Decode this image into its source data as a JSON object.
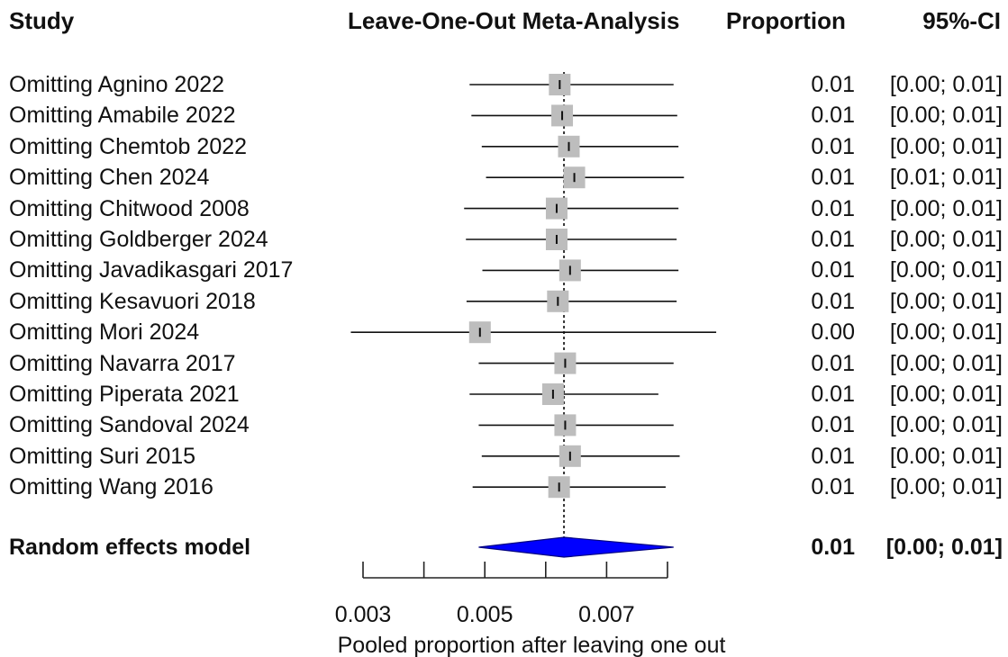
{
  "headers": {
    "study": "Study",
    "title": "Leave-One-Out Meta-Analysis",
    "estimate": "Proportion",
    "ci": "95%-CI"
  },
  "chart_data": {
    "type": "forest",
    "xlabel": "Pooled proportion after leaving one out",
    "xlim": [
      0.003,
      0.008
    ],
    "ticks": [
      0.003,
      0.004,
      0.005,
      0.006,
      0.007,
      0.008
    ],
    "tick_labels": [
      "0.003",
      "",
      "0.005",
      "",
      "0.007",
      ""
    ],
    "reference_line": 0.0063,
    "studies": [
      {
        "label": "Omitting Agnino 2022",
        "estimate": 0.00623,
        "lower": 0.00475,
        "upper": 0.0081,
        "proportion": "0.01",
        "ci": "[0.00; 0.01]"
      },
      {
        "label": "Omitting Amabile 2022",
        "estimate": 0.00627,
        "lower": 0.00478,
        "upper": 0.00816,
        "proportion": "0.01",
        "ci": "[0.00; 0.01]"
      },
      {
        "label": "Omitting Chemtob 2022",
        "estimate": 0.00638,
        "lower": 0.00495,
        "upper": 0.00818,
        "proportion": "0.01",
        "ci": "[0.00; 0.01]"
      },
      {
        "label": "Omitting Chen 2024",
        "estimate": 0.00647,
        "lower": 0.00502,
        "upper": 0.00827,
        "proportion": "0.01",
        "ci": "[0.01; 0.01]"
      },
      {
        "label": "Omitting Chitwood 2008",
        "estimate": 0.00618,
        "lower": 0.00466,
        "upper": 0.00818,
        "proportion": "0.01",
        "ci": "[0.00; 0.01]"
      },
      {
        "label": "Omitting Goldberger 2024",
        "estimate": 0.00618,
        "lower": 0.00469,
        "upper": 0.00815,
        "proportion": "0.01",
        "ci": "[0.00; 0.01]"
      },
      {
        "label": "Omitting Javadikasgari 2017",
        "estimate": 0.0064,
        "lower": 0.00496,
        "upper": 0.00818,
        "proportion": "0.01",
        "ci": "[0.00; 0.01]"
      },
      {
        "label": "Omitting Kesavuori 2018",
        "estimate": 0.0062,
        "lower": 0.0047,
        "upper": 0.00815,
        "proportion": "0.01",
        "ci": "[0.00; 0.01]"
      },
      {
        "label": "Omitting Mori 2024",
        "estimate": 0.00492,
        "lower": 0.0028,
        "upper": 0.0088,
        "proportion": "0.00",
        "ci": "[0.00; 0.01]"
      },
      {
        "label": "Omitting Navarra 2017",
        "estimate": 0.00632,
        "lower": 0.0049,
        "upper": 0.0081,
        "proportion": "0.01",
        "ci": "[0.00; 0.01]"
      },
      {
        "label": "Omitting Piperata 2021",
        "estimate": 0.00612,
        "lower": 0.00475,
        "upper": 0.00785,
        "proportion": "0.01",
        "ci": "[0.00; 0.01]"
      },
      {
        "label": "Omitting Sandoval 2024",
        "estimate": 0.00632,
        "lower": 0.0049,
        "upper": 0.0081,
        "proportion": "0.01",
        "ci": "[0.00; 0.01]"
      },
      {
        "label": "Omitting Suri 2015",
        "estimate": 0.0064,
        "lower": 0.00495,
        "upper": 0.0082,
        "proportion": "0.01",
        "ci": "[0.00; 0.01]"
      },
      {
        "label": "Omitting Wang 2016",
        "estimate": 0.00622,
        "lower": 0.0048,
        "upper": 0.00797,
        "proportion": "0.01",
        "ci": "[0.00; 0.01]"
      }
    ],
    "summary": {
      "label": "Random effects model",
      "estimate": 0.0063,
      "lower": 0.0049,
      "upper": 0.0081,
      "proportion": "0.01",
      "ci": "[0.00; 0.01]"
    },
    "colors": {
      "box": "#bdbdbd",
      "line": "#111111",
      "diamond": "#0000ff",
      "diamond_stroke": "#000080"
    }
  }
}
